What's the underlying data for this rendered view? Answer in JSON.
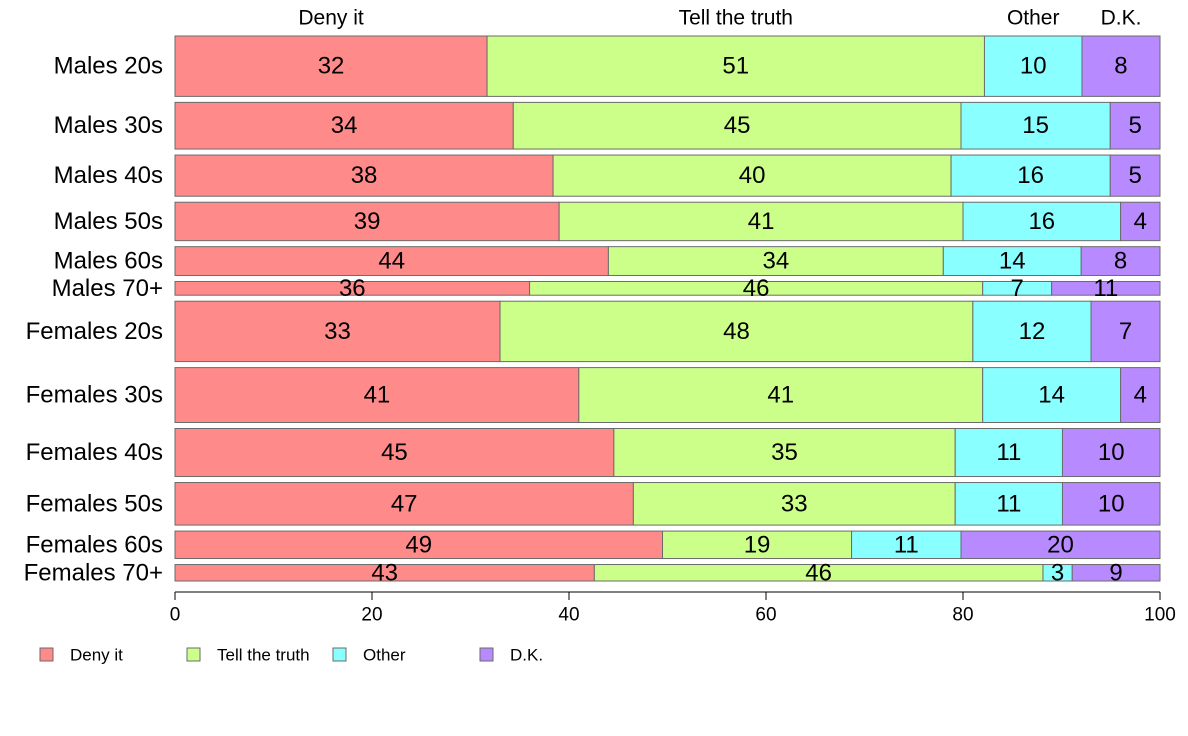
{
  "chart_data": {
    "type": "bar",
    "orientation": "horizontal",
    "stacked": true,
    "title": "",
    "xlabel": "",
    "ylabel": "",
    "xlim": [
      0,
      100
    ],
    "x_ticks": [
      0,
      20,
      40,
      60,
      80,
      100
    ],
    "grid": false,
    "legend_position": "bottom-left",
    "categories": [
      "Males 20s",
      "Males 30s",
      "Males 40s",
      "Males 50s",
      "Males 60s",
      "Males 70+",
      "Females 20s",
      "Females 30s",
      "Females 40s",
      "Females 50s",
      "Females 60s",
      "Females 70+"
    ],
    "category_weights": [
      44,
      34,
      30,
      28,
      21,
      10,
      44,
      40,
      35,
      31,
      20,
      12
    ],
    "series": [
      {
        "name": "Deny it",
        "color": "#ff8a8a",
        "values": [
          32,
          34,
          38,
          39,
          44,
          36,
          33,
          41,
          45,
          47,
          49,
          43
        ]
      },
      {
        "name": "Tell the truth",
        "color": "#ccff8a",
        "values": [
          51,
          45,
          40,
          41,
          34,
          46,
          48,
          41,
          35,
          33,
          19,
          46
        ]
      },
      {
        "name": "Other",
        "color": "#8affff",
        "values": [
          10,
          15,
          16,
          16,
          14,
          7,
          12,
          14,
          11,
          11,
          11,
          3
        ]
      },
      {
        "name": "D.K.",
        "color": "#b88aff",
        "values": [
          8,
          5,
          5,
          4,
          8,
          11,
          7,
          4,
          10,
          10,
          20,
          9
        ]
      }
    ]
  }
}
